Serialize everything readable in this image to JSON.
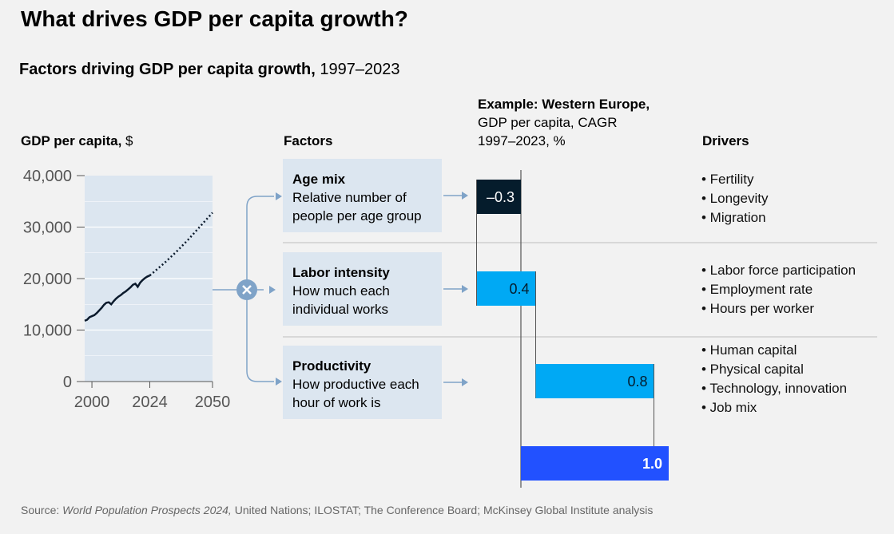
{
  "title": "What drives GDP per capita growth?",
  "subtitle": {
    "bold": "Factors driving GDP per capita growth,",
    "normal": " 1997–2023"
  },
  "left_chart_header": {
    "bold": "GDP per capita,",
    "normal": " $"
  },
  "factors_header": "Factors",
  "example_header": {
    "bold": "Example: Western Europe,",
    "line2": "GDP per capita, CAGR",
    "line3": "1997–2023, %"
  },
  "drivers_header": "Drivers",
  "multiply_icon": "multiply-icon",
  "factors": [
    {
      "title": "Age mix",
      "desc": "Relative number of people per age group"
    },
    {
      "title": "Labor intensity",
      "desc": "How much each individual works"
    },
    {
      "title": "Productivity",
      "desc": "How productive each hour of work is"
    }
  ],
  "drivers": [
    [
      "• Fertility",
      "• Longevity",
      "• Migration"
    ],
    [
      "• Labor force participation",
      "• Employment rate",
      "• Hours per worker"
    ],
    [
      "• Human capital",
      "• Physical capital",
      "• Technology, innovation",
      "• Job mix"
    ]
  ],
  "source": {
    "prefix": "Source: ",
    "italic": "World Population Prospects 2024,",
    "rest": " United Nations; ILOSTAT; The Conference Board; McKinsey Global Institute analysis"
  },
  "chart_data": [
    {
      "type": "line",
      "title": "GDP per capita, $",
      "xlim": [
        1997,
        2050
      ],
      "ylim": [
        0,
        40000
      ],
      "x_ticks": [
        2000,
        2024,
        2050
      ],
      "x_tick_labels": [
        "2000",
        "2024",
        "2050"
      ],
      "y_ticks": [
        0,
        10000,
        20000,
        30000,
        40000
      ],
      "y_tick_labels": [
        "0",
        "10,000",
        "20,000",
        "30,000",
        "40,000"
      ],
      "grid": true,
      "series": [
        {
          "style": "solid",
          "x": [
            1997,
            1998,
            1999,
            2000,
            2001,
            2002,
            2003,
            2004,
            2005,
            2006,
            2007,
            2008,
            2009,
            2010,
            2011,
            2012,
            2013,
            2014,
            2015,
            2016,
            2017,
            2018,
            2019,
            2020,
            2021,
            2022,
            2023,
            2024
          ],
          "y": [
            11800,
            12000,
            12500,
            12700,
            12900,
            13300,
            13800,
            14300,
            14900,
            15300,
            15400,
            15000,
            15600,
            16100,
            16500,
            16800,
            17200,
            17500,
            17900,
            18300,
            18800,
            19000,
            18400,
            19200,
            19700,
            20100,
            20400,
            20600
          ]
        },
        {
          "style": "dotted",
          "x": [
            2024,
            2030,
            2035,
            2040,
            2045,
            2050
          ],
          "y": [
            20600,
            23000,
            25200,
            27600,
            30200,
            32800
          ]
        }
      ],
      "colors": {
        "line": "#0b1a2c",
        "plot_bg": "#dce6f0"
      }
    },
    {
      "type": "bar",
      "subtype": "waterfall",
      "title": "Example: Western Europe, GDP per capita, CAGR 1997–2023, %",
      "categories": [
        "Age mix",
        "Labor intensity",
        "Productivity",
        "GDP per capita"
      ],
      "values": [
        -0.3,
        0.4,
        0.8,
        1.0
      ],
      "value_labels": [
        "–0.3",
        "0.4",
        "0.8",
        "1.0"
      ],
      "colors": [
        "#051c2c",
        "#00a9f4",
        "#00a9f4",
        "#2251ff"
      ],
      "label_colors": [
        "#ffffff",
        "#051c2c",
        "#051c2c",
        "#ffffff"
      ]
    }
  ]
}
